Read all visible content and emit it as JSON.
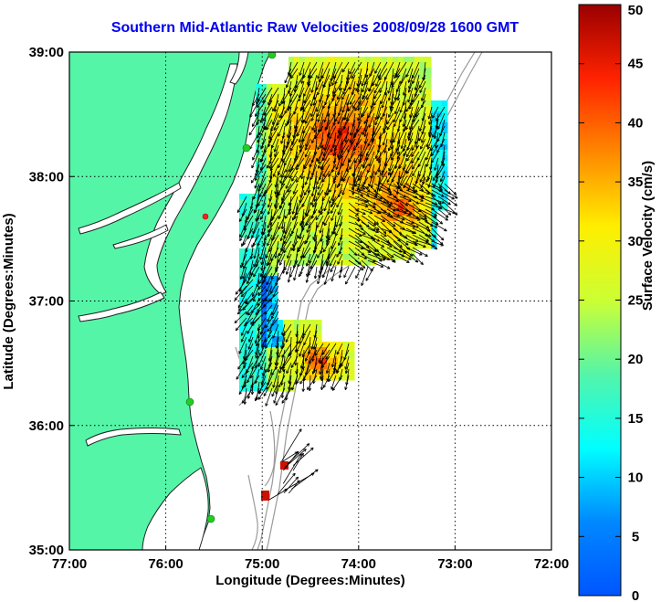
{
  "title": "Southern Mid-Atlantic Raw Velocities 2008/09/28 1600 GMT",
  "xlabel": "Longitude (Degrees:Minutes)",
  "ylabel": "Latitude (Degrees:Minutes)",
  "colorbar_label": "Surface Velocity (cm/s)",
  "x_ticks": [
    {
      "lon": -77,
      "label": "77:00"
    },
    {
      "lon": -76,
      "label": "76:00"
    },
    {
      "lon": -75,
      "label": "75:00"
    },
    {
      "lon": -74,
      "label": "74:00"
    },
    {
      "lon": -73,
      "label": "73:00"
    },
    {
      "lon": -72,
      "label": "72:00"
    }
  ],
  "y_ticks": [
    {
      "lat": 39,
      "label": "39:00"
    },
    {
      "lat": 38,
      "label": "38:00"
    },
    {
      "lat": 37,
      "label": "37:00"
    },
    {
      "lat": 36,
      "label": "36:00"
    },
    {
      "lat": 35,
      "label": "35:00"
    }
  ],
  "colorbar_ticks": [
    "0",
    "5",
    "10",
    "15",
    "20",
    "25",
    "30",
    "35",
    "40",
    "45",
    "50"
  ],
  "colors": {
    "land": "#55f5a8",
    "ocean": "#ffffff",
    "title": "#0000ee",
    "coastline": "#222222",
    "bathymetry": "#9a9a9a",
    "station": "#22cc22"
  },
  "map": {
    "lon_range": [
      -77,
      -72
    ],
    "lat_range": [
      35,
      39
    ],
    "grid": true,
    "colorbar_range": [
      0,
      50
    ]
  }
}
